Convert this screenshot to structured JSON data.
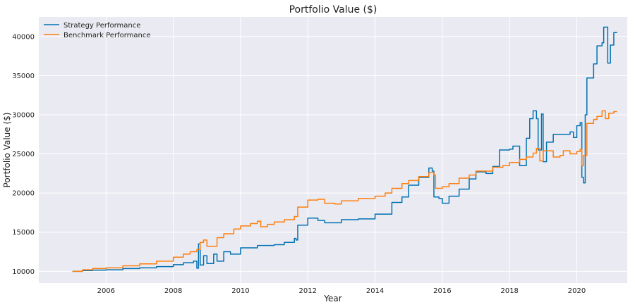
{
  "chart_data": {
    "type": "line",
    "title": "Portfolio Value ($)",
    "xlabel": "Year",
    "ylabel": "Portfolio Value ($)",
    "xlim": [
      2004.0,
      2021.5
    ],
    "ylim": [
      8500,
      42500
    ],
    "x_ticks": [
      2006,
      2008,
      2010,
      2012,
      2014,
      2016,
      2018,
      2020
    ],
    "y_ticks": [
      10000,
      15000,
      20000,
      25000,
      30000,
      35000,
      40000
    ],
    "grid": true,
    "legend_position": "top-left",
    "series": [
      {
        "name": "Strategy Performance",
        "color": "#0072B2",
        "points": [
          [
            2005.0,
            10000
          ],
          [
            2005.3,
            10100
          ],
          [
            2005.6,
            10150
          ],
          [
            2006.0,
            10200
          ],
          [
            2006.5,
            10350
          ],
          [
            2007.0,
            10450
          ],
          [
            2007.5,
            10600
          ],
          [
            2008.0,
            10850
          ],
          [
            2008.3,
            11100
          ],
          [
            2008.6,
            11300
          ],
          [
            2008.7,
            10400
          ],
          [
            2008.75,
            13500
          ],
          [
            2008.8,
            10800
          ],
          [
            2008.9,
            12000
          ],
          [
            2009.0,
            11000
          ],
          [
            2009.2,
            12200
          ],
          [
            2009.3,
            11300
          ],
          [
            2009.5,
            12500
          ],
          [
            2009.7,
            12200
          ],
          [
            2010.0,
            13000
          ],
          [
            2010.5,
            13300
          ],
          [
            2010.8,
            13300
          ],
          [
            2011.0,
            13400
          ],
          [
            2011.3,
            13700
          ],
          [
            2011.6,
            14200
          ],
          [
            2011.65,
            14000
          ],
          [
            2011.7,
            15900
          ],
          [
            2012.0,
            16800
          ],
          [
            2012.3,
            16500
          ],
          [
            2012.5,
            16200
          ],
          [
            2013.0,
            16600
          ],
          [
            2013.5,
            16700
          ],
          [
            2014.0,
            17300
          ],
          [
            2014.5,
            18800
          ],
          [
            2014.8,
            19500
          ],
          [
            2015.0,
            21000
          ],
          [
            2015.3,
            22000
          ],
          [
            2015.6,
            23200
          ],
          [
            2015.7,
            22800
          ],
          [
            2015.75,
            19500
          ],
          [
            2015.9,
            19300
          ],
          [
            2016.0,
            18700
          ],
          [
            2016.2,
            19600
          ],
          [
            2016.5,
            20500
          ],
          [
            2016.8,
            21800
          ],
          [
            2017.0,
            22700
          ],
          [
            2017.3,
            22500
          ],
          [
            2017.5,
            23400
          ],
          [
            2017.7,
            25500
          ],
          [
            2018.0,
            25600
          ],
          [
            2018.1,
            26000
          ],
          [
            2018.3,
            23500
          ],
          [
            2018.5,
            27000
          ],
          [
            2018.6,
            29500
          ],
          [
            2018.7,
            30500
          ],
          [
            2018.8,
            29500
          ],
          [
            2018.85,
            25500
          ],
          [
            2018.95,
            30100
          ],
          [
            2019.0,
            24000
          ],
          [
            2019.1,
            26500
          ],
          [
            2019.3,
            27500
          ],
          [
            2019.6,
            27500
          ],
          [
            2019.8,
            27800
          ],
          [
            2019.9,
            27100
          ],
          [
            2020.0,
            28600
          ],
          [
            2020.1,
            29000
          ],
          [
            2020.15,
            22000
          ],
          [
            2020.2,
            21300
          ],
          [
            2020.25,
            30000
          ],
          [
            2020.3,
            34700
          ],
          [
            2020.5,
            36500
          ],
          [
            2020.6,
            38800
          ],
          [
            2020.75,
            39200
          ],
          [
            2020.8,
            41200
          ],
          [
            2020.9,
            41200
          ],
          [
            2020.92,
            36600
          ],
          [
            2021.0,
            38900
          ],
          [
            2021.1,
            40500
          ],
          [
            2021.2,
            40500
          ]
        ]
      },
      {
        "name": "Benchmark Performance",
        "color": "#FF7F0E",
        "points": [
          [
            2005.0,
            10000
          ],
          [
            2005.3,
            10200
          ],
          [
            2005.6,
            10350
          ],
          [
            2006.0,
            10450
          ],
          [
            2006.5,
            10700
          ],
          [
            2007.0,
            10950
          ],
          [
            2007.5,
            11300
          ],
          [
            2008.0,
            11800
          ],
          [
            2008.3,
            12200
          ],
          [
            2008.5,
            12500
          ],
          [
            2008.7,
            12800
          ],
          [
            2008.8,
            13700
          ],
          [
            2008.9,
            14000
          ],
          [
            2009.0,
            13200
          ],
          [
            2009.3,
            14300
          ],
          [
            2009.5,
            14800
          ],
          [
            2009.8,
            15400
          ],
          [
            2010.0,
            15800
          ],
          [
            2010.3,
            16100
          ],
          [
            2010.5,
            16400
          ],
          [
            2010.6,
            15700
          ],
          [
            2010.8,
            16000
          ],
          [
            2011.0,
            16300
          ],
          [
            2011.3,
            16600
          ],
          [
            2011.6,
            17000
          ],
          [
            2011.7,
            18200
          ],
          [
            2012.0,
            19100
          ],
          [
            2012.3,
            19200
          ],
          [
            2012.5,
            18700
          ],
          [
            2012.8,
            18600
          ],
          [
            2013.0,
            19000
          ],
          [
            2013.5,
            19300
          ],
          [
            2014.0,
            19600
          ],
          [
            2014.3,
            20000
          ],
          [
            2014.5,
            20600
          ],
          [
            2014.8,
            21200
          ],
          [
            2015.0,
            21600
          ],
          [
            2015.3,
            22100
          ],
          [
            2015.6,
            22600
          ],
          [
            2015.75,
            22300
          ],
          [
            2015.8,
            20600
          ],
          [
            2016.0,
            20800
          ],
          [
            2016.2,
            21200
          ],
          [
            2016.5,
            21900
          ],
          [
            2016.8,
            22300
          ],
          [
            2017.0,
            22800
          ],
          [
            2017.5,
            23300
          ],
          [
            2017.8,
            23500
          ],
          [
            2018.0,
            23900
          ],
          [
            2018.3,
            24300
          ],
          [
            2018.5,
            24600
          ],
          [
            2018.7,
            25100
          ],
          [
            2018.8,
            25700
          ],
          [
            2018.9,
            24100
          ],
          [
            2019.0,
            25400
          ],
          [
            2019.3,
            24600
          ],
          [
            2019.5,
            24800
          ],
          [
            2019.6,
            25400
          ],
          [
            2019.8,
            25000
          ],
          [
            2020.0,
            25300
          ],
          [
            2020.1,
            25600
          ],
          [
            2020.15,
            23500
          ],
          [
            2020.2,
            24800
          ],
          [
            2020.3,
            28900
          ],
          [
            2020.5,
            29400
          ],
          [
            2020.6,
            29800
          ],
          [
            2020.75,
            30500
          ],
          [
            2020.85,
            29500
          ],
          [
            2020.95,
            30200
          ],
          [
            2021.1,
            30400
          ],
          [
            2021.2,
            30400
          ]
        ]
      }
    ]
  }
}
